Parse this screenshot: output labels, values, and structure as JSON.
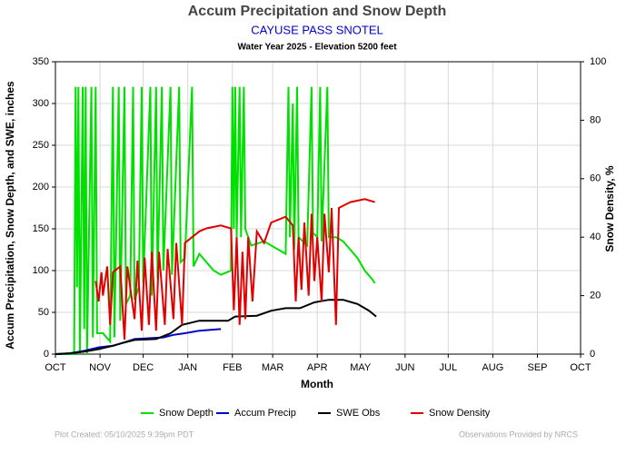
{
  "chart_data": {
    "type": "line",
    "title": "Accum Precipitation and Snow Depth",
    "subtitle": "CAYUSE PASS SNOTEL",
    "subtitle2": "Water Year 2025 -  Elevation 5200 feet",
    "xlabel": "Month",
    "ylabel": "Accum Precipitation, Snow Depth, and SWE, inches",
    "y2label": "Snow Density, %",
    "footer_left": "Plot Created: 05/10/2025 9:39pm PDT",
    "footer_right": "Observations Provided by NRCS",
    "xlim": [
      0,
      365
    ],
    "xticks": [
      {
        "value": 0,
        "label": "OCT"
      },
      {
        "value": 31,
        "label": "NOV"
      },
      {
        "value": 61,
        "label": "DEC"
      },
      {
        "value": 92,
        "label": "JAN"
      },
      {
        "value": 123,
        "label": "FEB"
      },
      {
        "value": 151,
        "label": "MAR"
      },
      {
        "value": 182,
        "label": "APR"
      },
      {
        "value": 212,
        "label": "MAY"
      },
      {
        "value": 243,
        "label": "JUN"
      },
      {
        "value": 273,
        "label": "JUL"
      },
      {
        "value": 304,
        "label": "AUG"
      },
      {
        "value": 335,
        "label": "SEP"
      },
      {
        "value": 365,
        "label": "OCT"
      }
    ],
    "ylim": [
      0,
      350
    ],
    "yticks": [
      0,
      50,
      100,
      150,
      200,
      250,
      300,
      350
    ],
    "y2lim": [
      0,
      100
    ],
    "y2ticks": [
      0,
      20,
      40,
      60,
      80,
      100
    ],
    "grid": true,
    "series": [
      {
        "name": "Snow Depth",
        "color": "#00e000",
        "x": [
          0,
          13,
          14,
          15,
          16,
          17,
          19,
          20,
          21,
          22,
          25,
          26,
          28,
          29,
          33,
          38,
          40,
          41,
          44,
          45,
          48,
          49,
          52,
          54,
          55,
          58,
          60,
          61,
          66,
          67,
          70,
          71,
          74,
          75,
          80,
          81,
          86,
          87,
          90,
          95,
          96,
          100,
          105,
          110,
          115,
          122,
          123,
          124,
          125,
          126,
          128,
          129,
          131,
          132,
          136,
          145,
          155,
          160,
          162,
          163,
          165,
          166,
          168,
          169,
          175,
          178,
          179,
          182,
          184,
          185,
          189,
          190,
          195,
          200,
          205,
          210,
          215,
          220,
          222
        ],
        "values": [
          0,
          0,
          320,
          80,
          320,
          0,
          320,
          30,
          320,
          0,
          320,
          20,
          320,
          25,
          25,
          15,
          320,
          20,
          320,
          40,
          320,
          60,
          70,
          320,
          65,
          80,
          320,
          85,
          320,
          70,
          320,
          90,
          320,
          100,
          320,
          95,
          320,
          110,
          115,
          320,
          105,
          120,
          110,
          100,
          95,
          100,
          320,
          150,
          320,
          140,
          320,
          140,
          320,
          150,
          130,
          135,
          125,
          120,
          320,
          140,
          300,
          125,
          320,
          140,
          130,
          320,
          145,
          140,
          320,
          135,
          320,
          140,
          140,
          135,
          125,
          115,
          100,
          90,
          85
        ]
      },
      {
        "name": "Accum Precip",
        "color": "#0000c8",
        "x": [
          0,
          10,
          20,
          30,
          40,
          48,
          55,
          65,
          75,
          82,
          90,
          100,
          108,
          115
        ],
        "values": [
          0,
          1,
          4,
          8,
          10,
          14,
          18,
          19,
          20,
          23,
          25,
          28,
          29,
          30
        ]
      },
      {
        "name": "SWE Obs",
        "color": "#000000",
        "x": [
          0,
          10,
          20,
          30,
          40,
          48,
          55,
          70,
          80,
          88,
          100,
          120,
          125,
          140,
          150,
          160,
          170,
          180,
          190,
          200,
          210,
          218,
          223
        ],
        "values": [
          0,
          1,
          3,
          6,
          10,
          14,
          17,
          18,
          25,
          35,
          40,
          40,
          45,
          46,
          52,
          55,
          55,
          62,
          65,
          65,
          60,
          52,
          45
        ]
      },
      {
        "name": "Snow Density",
        "color": "#e00000",
        "axis": "y2",
        "x": [
          28,
          30,
          32,
          33,
          36,
          38,
          40,
          45,
          48,
          50,
          55,
          57,
          60,
          62,
          65,
          67,
          70,
          72,
          76,
          78,
          82,
          84,
          88,
          90,
          95,
          100,
          105,
          115,
          122,
          124,
          126,
          128,
          130,
          132,
          134,
          137,
          140,
          145,
          150,
          160,
          165,
          167,
          169,
          171,
          173,
          176,
          178,
          180,
          182,
          185,
          187,
          190,
          192,
          195,
          197,
          205,
          215,
          222
        ],
        "values": [
          25,
          18,
          28,
          20,
          30,
          10,
          28,
          30,
          5,
          30,
          12,
          32,
          8,
          33,
          10,
          35,
          8,
          35,
          10,
          36,
          12,
          38,
          10,
          38,
          40,
          42,
          43,
          44,
          43,
          15,
          40,
          10,
          35,
          12,
          40,
          18,
          42,
          38,
          45,
          47,
          44,
          18,
          40,
          22,
          45,
          20,
          48,
          25,
          40,
          18,
          48,
          28,
          50,
          10,
          50,
          52,
          53,
          52
        ]
      }
    ]
  }
}
